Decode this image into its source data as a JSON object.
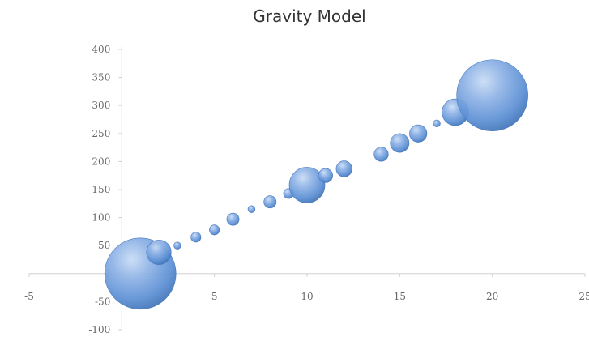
{
  "chart_data": {
    "type": "scatter",
    "subtype": "bubble",
    "title": "Gravity Model",
    "xlabel": "",
    "ylabel": "",
    "xlim": [
      -5,
      25
    ],
    "ylim": [
      -100,
      400
    ],
    "x_ticks": [
      -5,
      0,
      5,
      10,
      15,
      20,
      25
    ],
    "y_ticks": [
      -100,
      -50,
      0,
      50,
      100,
      150,
      200,
      250,
      300,
      350,
      400
    ],
    "x_tick_labels": [
      "-5",
      "",
      "5",
      "10",
      "15",
      "20",
      "25"
    ],
    "y_tick_labels": [
      "-100",
      "-50",
      "0",
      "50",
      "100",
      "150",
      "200",
      "250",
      "300",
      "350",
      "400"
    ],
    "grid": false,
    "bubble_color": "#5b8fd4",
    "series": [
      {
        "points": [
          {
            "x": 1,
            "y": 0,
            "size": 100
          },
          {
            "x": 2,
            "y": 38,
            "size": 12
          },
          {
            "x": 3,
            "y": 50,
            "size": 1
          },
          {
            "x": 4,
            "y": 65,
            "size": 2
          },
          {
            "x": 5,
            "y": 78,
            "size": 2
          },
          {
            "x": 6,
            "y": 97,
            "size": 3
          },
          {
            "x": 7,
            "y": 115,
            "size": 1
          },
          {
            "x": 8,
            "y": 128,
            "size": 3
          },
          {
            "x": 9,
            "y": 143,
            "size": 2
          },
          {
            "x": 10,
            "y": 158,
            "size": 25
          },
          {
            "x": 11,
            "y": 175,
            "size": 4
          },
          {
            "x": 12,
            "y": 187,
            "size": 5
          },
          {
            "x": 14,
            "y": 213,
            "size": 4
          },
          {
            "x": 15,
            "y": 233,
            "size": 7
          },
          {
            "x": 16,
            "y": 250,
            "size": 6
          },
          {
            "x": 17,
            "y": 268,
            "size": 1
          },
          {
            "x": 18,
            "y": 288,
            "size": 14
          },
          {
            "x": 20,
            "y": 318,
            "size": 100
          }
        ]
      }
    ]
  }
}
